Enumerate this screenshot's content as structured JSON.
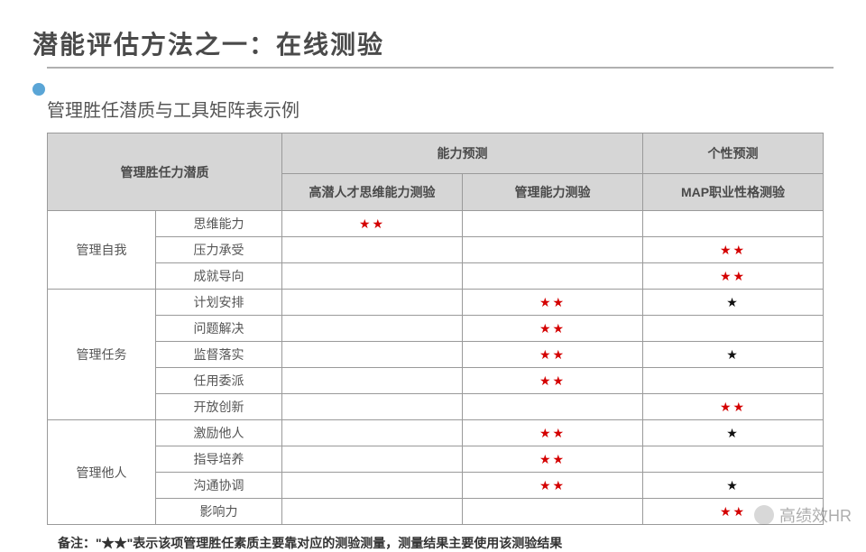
{
  "title": "潜能评估方法之一：在线测验",
  "subtitle": "管理胜任潜质与工具矩阵表示例",
  "header": {
    "competency_col": "管理胜任力潜质",
    "ability_group": "能力预测",
    "personality_group": "个性预测",
    "tests": [
      "高潜人才思维能力测验",
      "管理能力测验",
      "MAP职业性格测验"
    ]
  },
  "stars": {
    "red2": "★★",
    "black1": "★"
  },
  "groups": [
    {
      "name": "管理自我",
      "items": [
        {
          "label": "思维能力",
          "marks": [
            "red2",
            "",
            ""
          ]
        },
        {
          "label": "压力承受",
          "marks": [
            "",
            "",
            "red2"
          ]
        },
        {
          "label": "成就导向",
          "marks": [
            "",
            "",
            "red2"
          ]
        }
      ]
    },
    {
      "name": "管理任务",
      "items": [
        {
          "label": "计划安排",
          "marks": [
            "",
            "red2",
            "black1"
          ]
        },
        {
          "label": "问题解决",
          "marks": [
            "",
            "red2",
            ""
          ]
        },
        {
          "label": "监督落实",
          "marks": [
            "",
            "red2",
            "black1"
          ]
        },
        {
          "label": "任用委派",
          "marks": [
            "",
            "red2",
            ""
          ]
        },
        {
          "label": "开放创新",
          "marks": [
            "",
            "",
            "red2"
          ]
        }
      ]
    },
    {
      "name": "管理他人",
      "items": [
        {
          "label": "激励他人",
          "marks": [
            "",
            "red2",
            "black1"
          ]
        },
        {
          "label": "指导培养",
          "marks": [
            "",
            "red2",
            ""
          ]
        },
        {
          "label": "沟通协调",
          "marks": [
            "",
            "red2",
            "black1"
          ]
        },
        {
          "label": "影响力",
          "marks": [
            "",
            "",
            "red2"
          ]
        }
      ]
    }
  ],
  "footnote": "备注：\"★★\"表示该项管理胜任素质主要靠对应的测验测量，测量结果主要使用该测验结果",
  "watermark": "高绩效HR",
  "colors": {
    "title_dot": "#5aa5d6",
    "header_bg": "#d6d6d6",
    "border": "#9a9a9a",
    "star_red": "#d40000",
    "star_black": "#111111",
    "text": "#555555",
    "bg": "#ffffff"
  }
}
